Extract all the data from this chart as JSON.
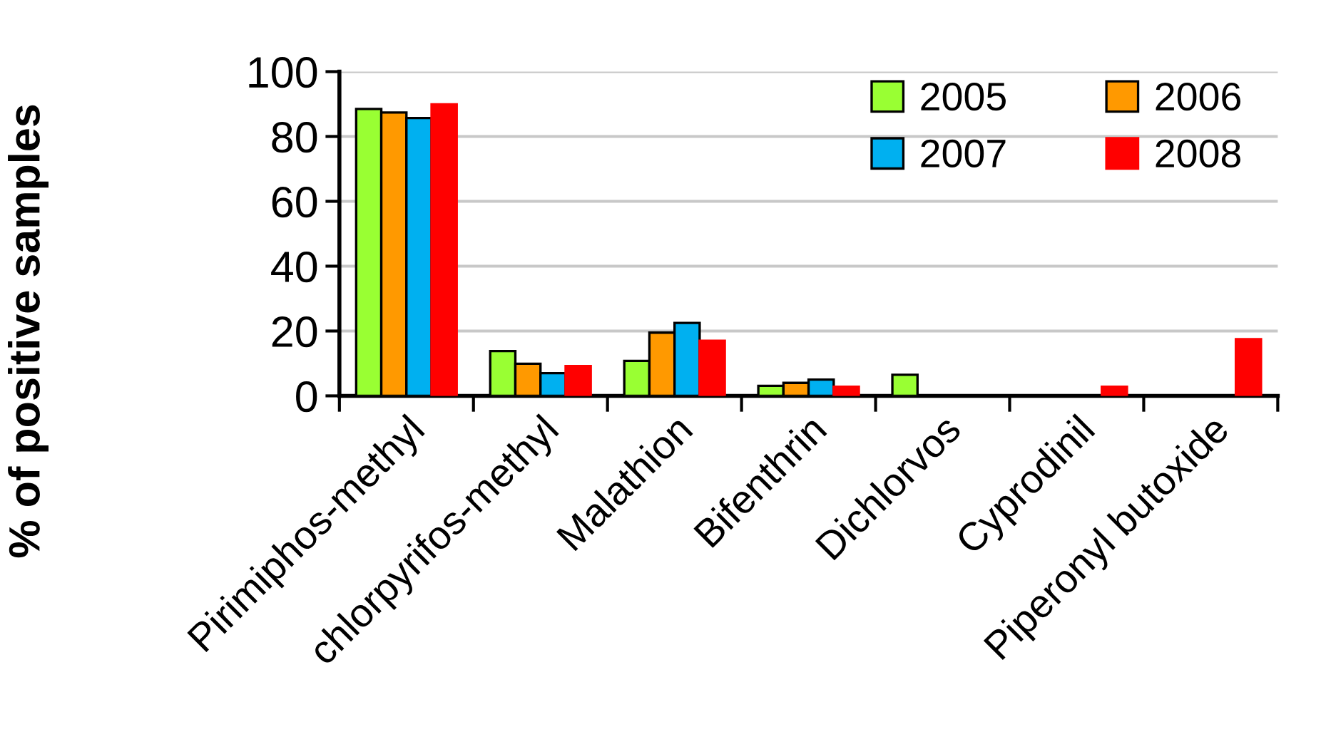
{
  "chart_data": {
    "type": "bar",
    "ylabel": "% of positive samples",
    "categories": [
      "Pirimiphos-methyl",
      "chlorpyrifos-methyl",
      "Malathion",
      "Bifenthrin",
      "Dichlorvos",
      "Cyprodinil",
      "Piperonyl butoxide"
    ],
    "series": [
      {
        "name": "2005",
        "color": "#99ff33",
        "values": [
          88.5,
          13.8,
          10.8,
          3.1,
          6.5,
          null,
          null
        ]
      },
      {
        "name": "2006",
        "color": "#ff9900",
        "values": [
          87.4,
          9.9,
          19.5,
          4.0,
          null,
          null,
          null
        ]
      },
      {
        "name": "2007",
        "color": "#00b0f0",
        "values": [
          85.7,
          7.0,
          22.5,
          5.0,
          null,
          null,
          null
        ]
      },
      {
        "name": "2008",
        "color": "#ff0000",
        "values": [
          89.9,
          9.2,
          17.0,
          2.8,
          null,
          2.8,
          17.5
        ]
      }
    ],
    "ylim": [
      0,
      100
    ],
    "yticks": [
      0,
      20,
      40,
      60,
      80,
      100
    ],
    "grid": "y",
    "legend": "top right"
  }
}
